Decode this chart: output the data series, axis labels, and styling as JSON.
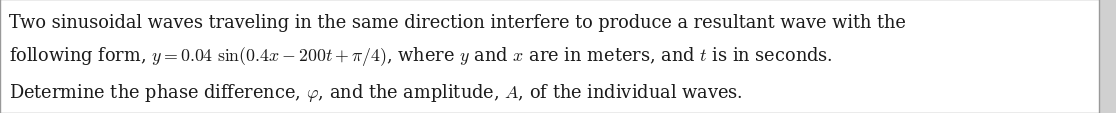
{
  "lines": [
    "Two sinusoidal waves traveling in the same direction interfere to produce a resultant wave with the",
    "following form, $y = 0.04\\ \\sin(0.4x - 200t + \\pi/4)$, where $y$ and $x$ are in meters, and $t$ is in seconds.",
    "Determine the phase difference, $\\varphi$, and the amplitude, $A$, of the individual waves."
  ],
  "background_color": "#ffffff",
  "border_color": "#999999",
  "text_color": "#1a1a1a",
  "font_size": 12.8,
  "fig_width": 11.16,
  "fig_height": 1.14,
  "dpi": 100
}
